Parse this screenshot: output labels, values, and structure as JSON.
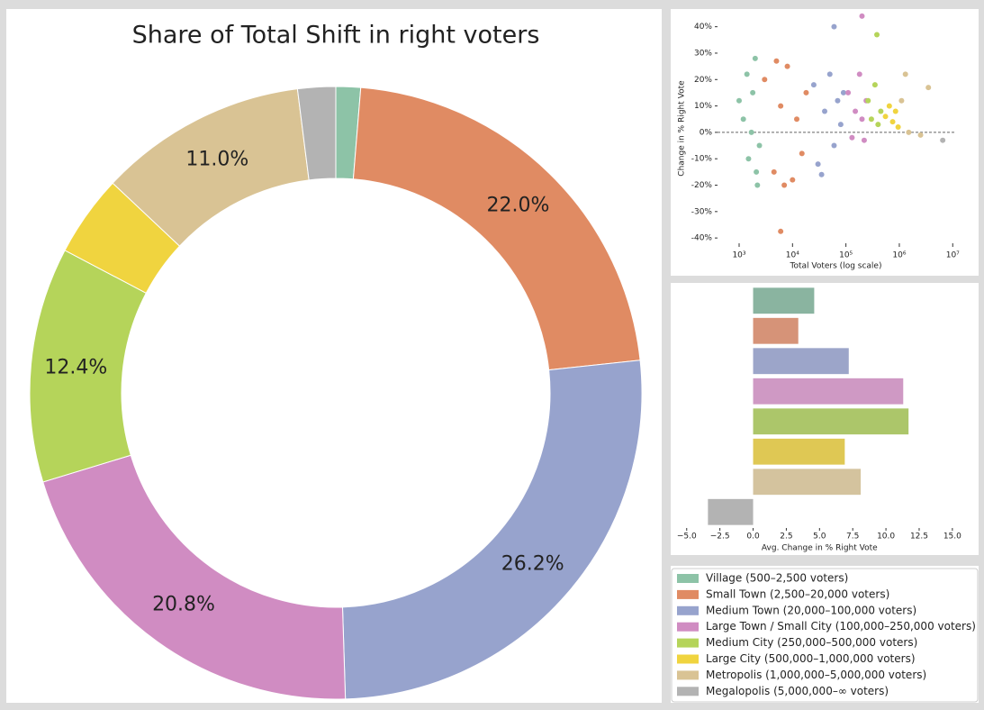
{
  "chart_data": [
    {
      "type": "pie",
      "title": "Share of Total Shift in right voters",
      "donut": true,
      "categories": [
        "Village (500–2,500 voters)",
        "Small Town (2,500–20,000 voters)",
        "Medium Town (20,000–100,000 voters)",
        "Large Town / Small City (100,000–250,000 voters)",
        "Medium City (250,000–500,000 voters)",
        "Large City (500,000–1,000,000 voters)",
        "Metropolis (1,000,000–5,000,000 voters)",
        "Megalopolis (5,000,000–∞ voters)"
      ],
      "values": [
        1.3,
        22.0,
        26.2,
        20.8,
        12.4,
        4.3,
        11.0,
        2.0
      ],
      "value_labels": [
        null,
        "22.0%",
        "26.2%",
        "20.8%",
        "12.4%",
        null,
        "11.0%",
        null
      ],
      "colors": [
        "#8dc3a7",
        "#e08b63",
        "#97a3cd",
        "#d08cc2",
        "#b5d45a",
        "#f0d43f",
        "#d9c394",
        "#b3b3b3"
      ]
    },
    {
      "type": "scatter",
      "xlabel": "Total Voters (log scale)",
      "ylabel": "Change in % Right Vote",
      "xscale": "log",
      "xlim": [
        394,
        10700000
      ],
      "ylim": [
        -42,
        45
      ],
      "xticks": [
        {
          "value": 1000,
          "label": "10³"
        },
        {
          "value": 10000,
          "label": "10⁴"
        },
        {
          "value": 100000,
          "label": "10⁵"
        },
        {
          "value": 1000000,
          "label": "10⁶"
        },
        {
          "value": 10000000,
          "label": "10⁷"
        }
      ],
      "yticks": [
        {
          "value": -40,
          "label": "-40%"
        },
        {
          "value": -30,
          "label": "-30%"
        },
        {
          "value": -20,
          "label": "-20%"
        },
        {
          "value": -10,
          "label": "-10%"
        },
        {
          "value": 0,
          "label": "0%"
        },
        {
          "value": 10,
          "label": "10%"
        },
        {
          "value": 20,
          "label": "20%"
        },
        {
          "value": 30,
          "label": "30%"
        },
        {
          "value": 40,
          "label": "40%"
        }
      ],
      "hline": 0,
      "series": [
        {
          "color": "#8dc3a7",
          "x": [
            1200,
            1500,
            1800,
            2000,
            2200,
            1000,
            1700,
            2400,
            1400,
            2100
          ],
          "values": [
            5,
            -10,
            15,
            28,
            -20,
            12,
            0,
            -5,
            22,
            -15
          ]
        },
        {
          "color": "#e08b63",
          "x": [
            3000,
            4500,
            6000,
            8000,
            10000,
            12000,
            15000,
            18000,
            5000,
            7000,
            6000
          ],
          "values": [
            20,
            -15,
            10,
            25,
            -18,
            5,
            -8,
            15,
            27,
            -20,
            -37.5
          ]
        },
        {
          "color": "#97a3cd",
          "x": [
            25000,
            30000,
            40000,
            50000,
            60000,
            70000,
            80000,
            90000,
            35000,
            60000
          ],
          "values": [
            18,
            -12,
            8,
            22,
            -5,
            12,
            3,
            15,
            -16,
            40
          ]
        },
        {
          "color": "#d08cc2",
          "x": [
            110000,
            130000,
            150000,
            180000,
            200000,
            220000,
            240000,
            200000
          ],
          "values": [
            15,
            -2,
            8,
            22,
            5,
            -3,
            12,
            44
          ]
        },
        {
          "color": "#b5d45a",
          "x": [
            260000,
            300000,
            350000,
            400000,
            450000,
            380000
          ],
          "values": [
            12,
            5,
            18,
            3,
            8,
            37
          ]
        },
        {
          "color": "#f0d43f",
          "x": [
            550000,
            650000,
            750000,
            850000,
            950000
          ],
          "values": [
            6,
            10,
            4,
            8,
            2
          ]
        },
        {
          "color": "#d9c394",
          "x": [
            1100000,
            1500000,
            2500000,
            3500000,
            1300000
          ],
          "values": [
            12,
            0,
            -1,
            17,
            22
          ]
        },
        {
          "color": "#b3b3b3",
          "x": [
            6500000
          ],
          "values": [
            -3
          ]
        }
      ]
    },
    {
      "type": "hbar",
      "xlabel": "Avg. Change in % Right Vote",
      "categories": [
        null,
        null,
        null,
        null,
        null,
        null,
        null,
        null
      ],
      "values": [
        4.6,
        3.4,
        7.2,
        11.3,
        11.7,
        6.9,
        8.1,
        -3.4
      ],
      "colors": [
        "#8ab4a0",
        "#d69378",
        "#9ca5c9",
        "#cf99c4",
        "#acc66a",
        "#dfc854",
        "#d4c39e",
        "#b3b3b3"
      ],
      "xlim": [
        -6,
        16.5
      ],
      "xticks": [
        {
          "value": -5,
          "label": "−5.0"
        },
        {
          "value": -2.5,
          "label": "−2.5"
        },
        {
          "value": 0,
          "label": "0.0"
        },
        {
          "value": 2.5,
          "label": "2.5"
        },
        {
          "value": 5,
          "label": "5.0"
        },
        {
          "value": 7.5,
          "label": "7.5"
        },
        {
          "value": 10,
          "label": "10.0"
        },
        {
          "value": 12.5,
          "label": "12.5"
        },
        {
          "value": 15,
          "label": "15.0"
        }
      ]
    }
  ]
}
